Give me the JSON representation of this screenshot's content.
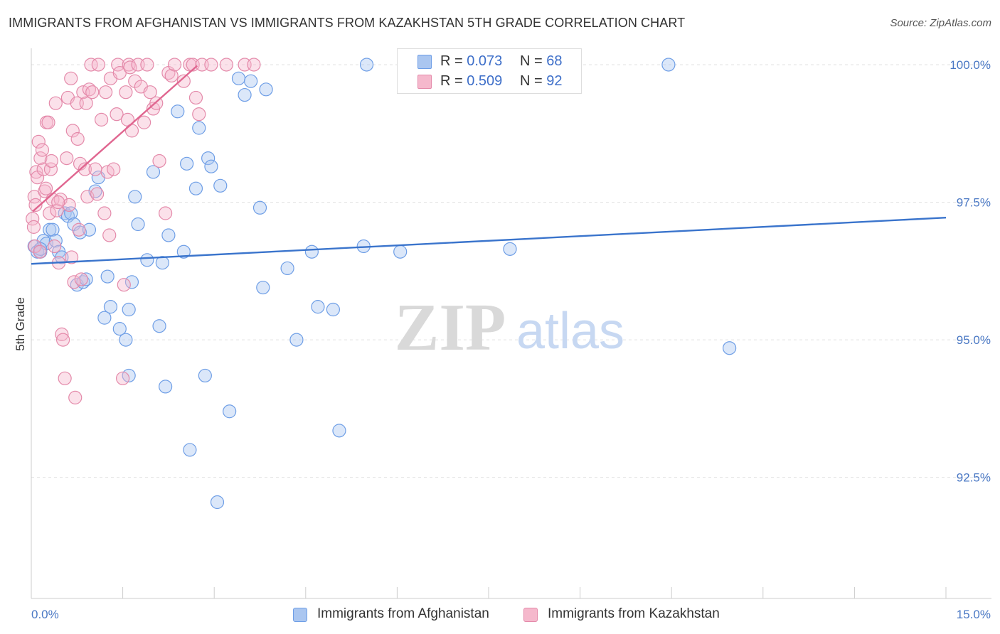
{
  "chart_data": {
    "type": "scatter",
    "title": "IMMIGRANTS FROM AFGHANISTAN VS IMMIGRANTS FROM KAZAKHSTAN 5TH GRADE CORRELATION CHART",
    "source": "Source: ZipAtlas.com",
    "ylabel": "5th Grade",
    "xlabel": "",
    "xlim": [
      0,
      15
    ],
    "ylim": [
      90.3,
      100.4
    ],
    "x_tick_labels": [
      {
        "value": 0,
        "label": "0.0%"
      },
      {
        "value": 15,
        "label": "15.0%"
      }
    ],
    "y_tick_labels": [
      {
        "value": 100,
        "label": "100.0%"
      },
      {
        "value": 97.5,
        "label": "97.5%"
      },
      {
        "value": 95,
        "label": "95.0%"
      },
      {
        "value": 92.5,
        "label": "92.5%"
      }
    ],
    "watermark": {
      "part1": "ZIP",
      "part2": "atlas"
    },
    "series": [
      {
        "name": "Immigrants from Afghanistan",
        "color": "#6e9ee6",
        "fill": "#aac6f0",
        "line_color": "#3a74cc",
        "R": "0.073",
        "N": "68",
        "trend": {
          "x": [
            0,
            15
          ],
          "y": [
            96.38,
            97.22
          ]
        },
        "points": [
          [
            0.05,
            96.7
          ],
          [
            0.1,
            96.6
          ],
          [
            0.15,
            96.6
          ],
          [
            0.2,
            96.8
          ],
          [
            0.25,
            96.75
          ],
          [
            0.3,
            97.0
          ],
          [
            0.35,
            97.0
          ],
          [
            0.4,
            96.8
          ],
          [
            0.45,
            96.6
          ],
          [
            0.55,
            97.3
          ],
          [
            0.6,
            97.25
          ],
          [
            0.65,
            97.3
          ],
          [
            0.7,
            97.1
          ],
          [
            0.75,
            96.0
          ],
          [
            0.8,
            96.95
          ],
          [
            0.85,
            96.05
          ],
          [
            0.9,
            96.1
          ],
          [
            1.05,
            97.7
          ],
          [
            1.1,
            97.95
          ],
          [
            1.2,
            95.4
          ],
          [
            1.3,
            95.6
          ],
          [
            1.45,
            95.2
          ],
          [
            1.55,
            95.0
          ],
          [
            1.6,
            95.55
          ],
          [
            1.6,
            94.35
          ],
          [
            1.65,
            96.05
          ],
          [
            1.7,
            97.6
          ],
          [
            1.75,
            97.1
          ],
          [
            1.9,
            96.45
          ],
          [
            2.0,
            98.05
          ],
          [
            2.1,
            95.25
          ],
          [
            2.2,
            94.15
          ],
          [
            2.25,
            96.9
          ],
          [
            2.4,
            99.15
          ],
          [
            2.5,
            96.6
          ],
          [
            2.55,
            98.2
          ],
          [
            2.6,
            93.0
          ],
          [
            2.7,
            97.75
          ],
          [
            2.75,
            98.85
          ],
          [
            2.85,
            94.35
          ],
          [
            2.9,
            98.3
          ],
          [
            2.95,
            98.15
          ],
          [
            3.1,
            97.8
          ],
          [
            3.05,
            92.05
          ],
          [
            3.25,
            93.7
          ],
          [
            3.4,
            99.75
          ],
          [
            3.5,
            99.45
          ],
          [
            3.6,
            99.7
          ],
          [
            3.75,
            97.4
          ],
          [
            3.8,
            95.95
          ],
          [
            3.85,
            99.55
          ],
          [
            4.2,
            96.3
          ],
          [
            4.35,
            95.0
          ],
          [
            4.6,
            96.6
          ],
          [
            4.7,
            95.6
          ],
          [
            4.95,
            95.55
          ],
          [
            5.05,
            93.35
          ],
          [
            5.45,
            96.7
          ],
          [
            5.5,
            100.0
          ],
          [
            6.05,
            96.6
          ],
          [
            7.85,
            96.65
          ],
          [
            10.45,
            100.0
          ],
          [
            11.45,
            94.85
          ],
          [
            0.15,
            96.65
          ],
          [
            0.5,
            96.5
          ],
          [
            1.25,
            96.15
          ],
          [
            2.15,
            96.4
          ],
          [
            0.95,
            97.0
          ]
        ]
      },
      {
        "name": "Immigrants from Kazakhstan",
        "color": "#e48aaa",
        "fill": "#f5b8cc",
        "line_color": "#e06690",
        "R": "0.509",
        "N": "92",
        "trend": {
          "x": [
            0.02,
            2.72
          ],
          "y": [
            97.33,
            99.98
          ]
        },
        "points": [
          [
            0.02,
            97.2
          ],
          [
            0.04,
            97.05
          ],
          [
            0.05,
            97.6
          ],
          [
            0.06,
            96.7
          ],
          [
            0.08,
            98.05
          ],
          [
            0.1,
            97.95
          ],
          [
            0.12,
            98.6
          ],
          [
            0.15,
            98.3
          ],
          [
            0.18,
            98.45
          ],
          [
            0.2,
            98.1
          ],
          [
            0.22,
            97.7
          ],
          [
            0.25,
            98.95
          ],
          [
            0.28,
            98.95
          ],
          [
            0.3,
            97.3
          ],
          [
            0.32,
            98.1
          ],
          [
            0.35,
            97.55
          ],
          [
            0.38,
            96.7
          ],
          [
            0.4,
            99.3
          ],
          [
            0.42,
            97.35
          ],
          [
            0.45,
            96.4
          ],
          [
            0.48,
            97.55
          ],
          [
            0.5,
            95.1
          ],
          [
            0.52,
            95.0
          ],
          [
            0.55,
            94.3
          ],
          [
            0.58,
            98.3
          ],
          [
            0.6,
            99.4
          ],
          [
            0.62,
            97.45
          ],
          [
            0.65,
            99.75
          ],
          [
            0.68,
            98.8
          ],
          [
            0.7,
            96.05
          ],
          [
            0.72,
            93.95
          ],
          [
            0.75,
            99.3
          ],
          [
            0.78,
            97.0
          ],
          [
            0.8,
            98.2
          ],
          [
            0.82,
            96.1
          ],
          [
            0.85,
            99.5
          ],
          [
            0.88,
            98.1
          ],
          [
            0.9,
            99.3
          ],
          [
            0.92,
            97.6
          ],
          [
            0.95,
            99.55
          ],
          [
            0.98,
            100.0
          ],
          [
            1.0,
            99.5
          ],
          [
            1.05,
            98.1
          ],
          [
            1.08,
            97.65
          ],
          [
            1.1,
            100.0
          ],
          [
            1.15,
            99.0
          ],
          [
            1.2,
            97.3
          ],
          [
            1.22,
            99.5
          ],
          [
            1.25,
            98.05
          ],
          [
            1.28,
            96.9
          ],
          [
            1.3,
            99.75
          ],
          [
            1.35,
            98.1
          ],
          [
            1.4,
            99.1
          ],
          [
            1.42,
            100.0
          ],
          [
            1.45,
            99.85
          ],
          [
            1.5,
            94.3
          ],
          [
            1.52,
            96.0
          ],
          [
            1.55,
            99.5
          ],
          [
            1.58,
            99.0
          ],
          [
            1.6,
            100.0
          ],
          [
            1.62,
            99.95
          ],
          [
            1.65,
            98.8
          ],
          [
            1.7,
            99.7
          ],
          [
            1.75,
            100.0
          ],
          [
            1.8,
            99.6
          ],
          [
            1.85,
            98.95
          ],
          [
            1.9,
            100.0
          ],
          [
            1.95,
            99.5
          ],
          [
            2.0,
            99.2
          ],
          [
            2.05,
            99.3
          ],
          [
            2.1,
            98.25
          ],
          [
            2.2,
            97.3
          ],
          [
            2.25,
            99.85
          ],
          [
            2.3,
            99.8
          ],
          [
            2.35,
            100.0
          ],
          [
            2.5,
            99.7
          ],
          [
            2.6,
            100.0
          ],
          [
            2.65,
            100.0
          ],
          [
            2.7,
            99.4
          ],
          [
            2.75,
            99.1
          ],
          [
            2.8,
            100.0
          ],
          [
            2.95,
            100.0
          ],
          [
            3.2,
            100.0
          ],
          [
            3.5,
            100.0
          ],
          [
            3.65,
            100.0
          ],
          [
            0.07,
            97.45
          ],
          [
            0.14,
            96.6
          ],
          [
            0.24,
            97.75
          ],
          [
            0.33,
            98.25
          ],
          [
            0.44,
            97.5
          ],
          [
            0.66,
            96.5
          ],
          [
            0.76,
            98.65
          ]
        ]
      }
    ]
  }
}
